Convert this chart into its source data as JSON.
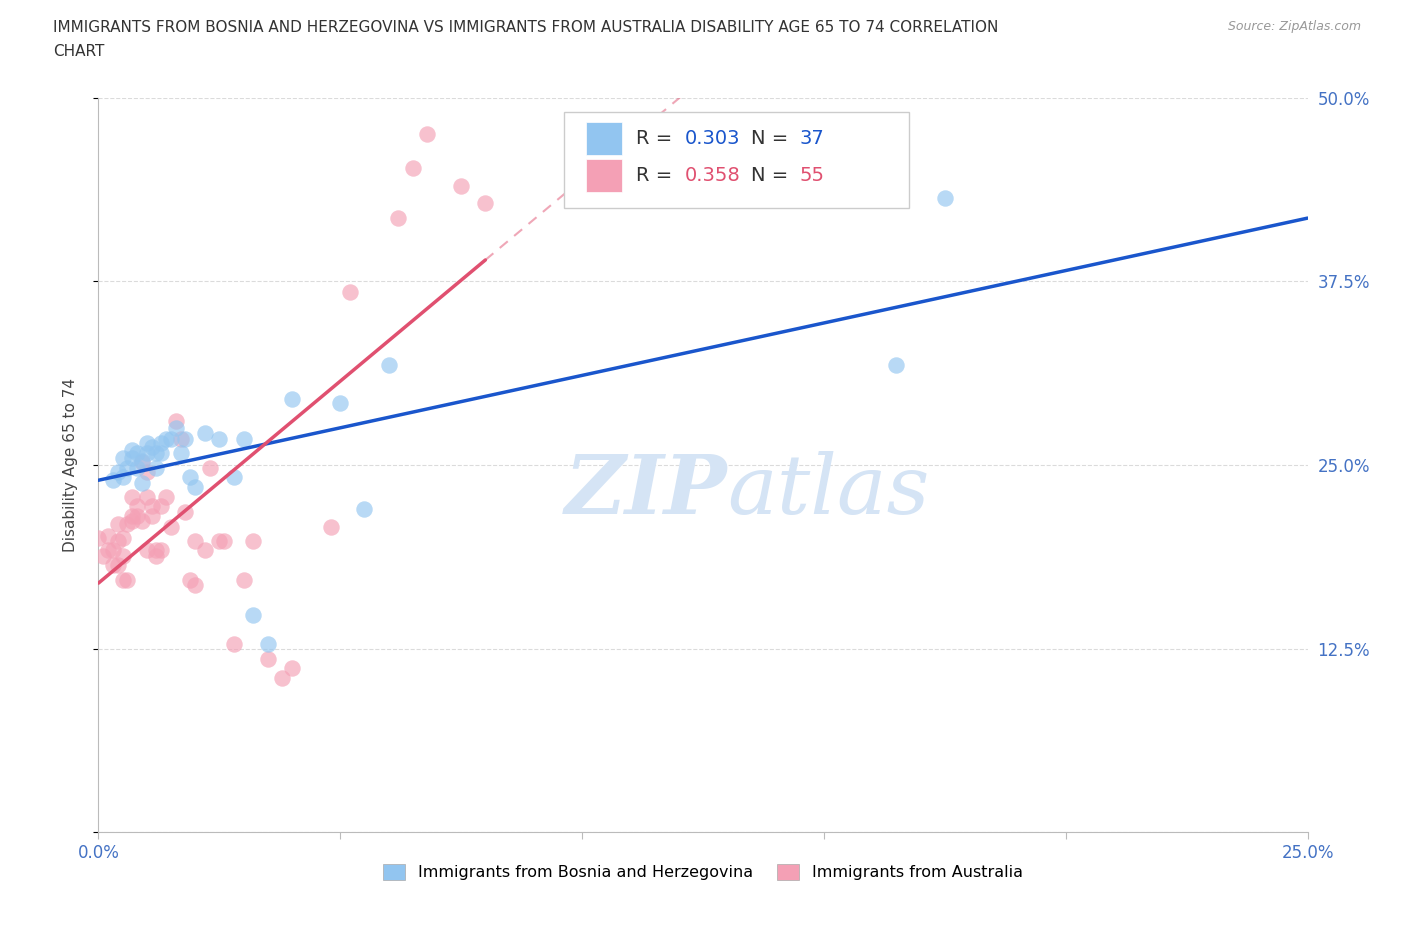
{
  "title_line1": "IMMIGRANTS FROM BOSNIA AND HERZEGOVINA VS IMMIGRANTS FROM AUSTRALIA DISABILITY AGE 65 TO 74 CORRELATION",
  "title_line2": "CHART",
  "source": "Source: ZipAtlas.com",
  "ylabel": "Disability Age 65 to 74",
  "xlim": [
    0.0,
    0.25
  ],
  "ylim": [
    0.0,
    0.5
  ],
  "xticks": [
    0.0,
    0.05,
    0.1,
    0.15,
    0.2,
    0.25
  ],
  "xtick_labels": [
    "0.0%",
    "",
    "",
    "",
    "",
    "25.0%"
  ],
  "yticks": [
    0.0,
    0.125,
    0.25,
    0.375,
    0.5
  ],
  "ytick_labels": [
    "",
    "12.5%",
    "25.0%",
    "37.5%",
    "50.0%"
  ],
  "R_bosnia": 0.303,
  "N_bosnia": 37,
  "R_australia": 0.358,
  "N_australia": 55,
  "color_bosnia": "#92C5F0",
  "color_australia": "#F4A0B5",
  "line_color_bosnia": "#1A56CC",
  "line_color_australia": "#E05070",
  "label_bosnia": "Immigrants from Bosnia and Herzegovina",
  "label_australia": "Immigrants from Australia",
  "background_color": "#FFFFFF",
  "grid_color": "#CCCCCC",
  "axis_color": "#BBBBBB",
  "tick_color": "#4472C4",
  "watermark_color": "#D5E4F5",
  "bosnia_x": [
    0.003,
    0.004,
    0.005,
    0.005,
    0.006,
    0.007,
    0.007,
    0.008,
    0.008,
    0.009,
    0.009,
    0.01,
    0.01,
    0.011,
    0.012,
    0.012,
    0.013,
    0.013,
    0.014,
    0.015,
    0.016,
    0.017,
    0.018,
    0.019,
    0.02,
    0.022,
    0.025,
    0.028,
    0.03,
    0.032,
    0.035,
    0.04,
    0.05,
    0.055,
    0.06,
    0.165,
    0.175
  ],
  "bosnia_y": [
    0.24,
    0.245,
    0.255,
    0.242,
    0.248,
    0.255,
    0.26,
    0.248,
    0.258,
    0.238,
    0.253,
    0.258,
    0.265,
    0.262,
    0.248,
    0.258,
    0.258,
    0.265,
    0.268,
    0.268,
    0.275,
    0.258,
    0.268,
    0.242,
    0.235,
    0.272,
    0.268,
    0.242,
    0.268,
    0.148,
    0.128,
    0.295,
    0.292,
    0.22,
    0.318,
    0.318,
    0.432
  ],
  "australia_x": [
    0.0,
    0.001,
    0.002,
    0.002,
    0.003,
    0.003,
    0.004,
    0.004,
    0.004,
    0.005,
    0.005,
    0.005,
    0.006,
    0.006,
    0.007,
    0.007,
    0.007,
    0.008,
    0.008,
    0.009,
    0.009,
    0.01,
    0.01,
    0.01,
    0.011,
    0.011,
    0.012,
    0.012,
    0.013,
    0.013,
    0.014,
    0.015,
    0.016,
    0.017,
    0.018,
    0.019,
    0.02,
    0.02,
    0.022,
    0.023,
    0.025,
    0.026,
    0.028,
    0.03,
    0.032,
    0.035,
    0.038,
    0.04,
    0.048,
    0.052,
    0.062,
    0.065,
    0.068,
    0.075,
    0.08
  ],
  "australia_y": [
    0.2,
    0.188,
    0.202,
    0.192,
    0.182,
    0.192,
    0.198,
    0.182,
    0.21,
    0.188,
    0.2,
    0.172,
    0.172,
    0.21,
    0.228,
    0.215,
    0.212,
    0.215,
    0.222,
    0.212,
    0.252,
    0.228,
    0.245,
    0.192,
    0.215,
    0.222,
    0.188,
    0.192,
    0.222,
    0.192,
    0.228,
    0.208,
    0.28,
    0.268,
    0.218,
    0.172,
    0.198,
    0.168,
    0.192,
    0.248,
    0.198,
    0.198,
    0.128,
    0.172,
    0.198,
    0.118,
    0.105,
    0.112,
    0.208,
    0.368,
    0.418,
    0.452,
    0.475,
    0.44,
    0.428
  ]
}
